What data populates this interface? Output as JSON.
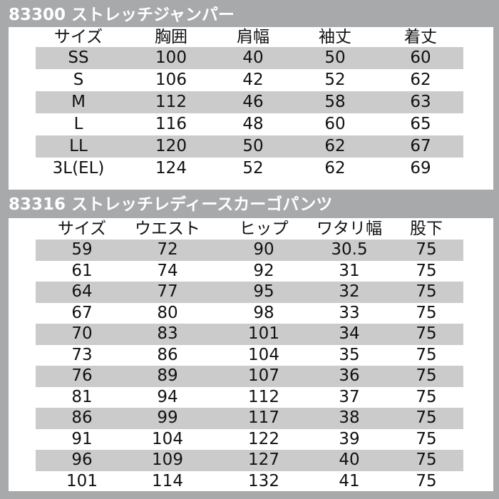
{
  "jumper": {
    "title": "83300 ストレッチジャンパー",
    "headers": [
      "サイズ",
      "胸囲",
      "肩幅",
      "袖丈",
      "着丈"
    ],
    "rows": [
      [
        "SS",
        "100",
        "40",
        "50",
        "60"
      ],
      [
        "S",
        "106",
        "42",
        "52",
        "62"
      ],
      [
        "M",
        "112",
        "46",
        "58",
        "63"
      ],
      [
        "L",
        "116",
        "48",
        "60",
        "65"
      ],
      [
        "LL",
        "120",
        "50",
        "62",
        "67"
      ],
      [
        "3L(EL)",
        "124",
        "52",
        "62",
        "69"
      ]
    ]
  },
  "pants": {
    "title": "83316 ストレッチレディースカーゴパンツ",
    "headers": [
      "サイズ",
      "ウエスト",
      "ヒップ",
      "ワタリ幅",
      "股下"
    ],
    "rows": [
      [
        "59",
        "72",
        "90",
        "30.5",
        "75"
      ],
      [
        "61",
        "74",
        "92",
        "31",
        "75"
      ],
      [
        "64",
        "77",
        "95",
        "32",
        "75"
      ],
      [
        "67",
        "80",
        "98",
        "33",
        "75"
      ],
      [
        "70",
        "83",
        "101",
        "34",
        "75"
      ],
      [
        "73",
        "86",
        "104",
        "35",
        "75"
      ],
      [
        "76",
        "89",
        "107",
        "36",
        "75"
      ],
      [
        "81",
        "94",
        "112",
        "37",
        "75"
      ],
      [
        "86",
        "99",
        "117",
        "38",
        "75"
      ],
      [
        "91",
        "104",
        "122",
        "39",
        "75"
      ],
      [
        "96",
        "109",
        "127",
        "40",
        "75"
      ],
      [
        "101",
        "114",
        "132",
        "41",
        "75"
      ]
    ]
  },
  "colors": {
    "frame": "#a7a9ab",
    "stripe": "#cbcbcb"
  }
}
